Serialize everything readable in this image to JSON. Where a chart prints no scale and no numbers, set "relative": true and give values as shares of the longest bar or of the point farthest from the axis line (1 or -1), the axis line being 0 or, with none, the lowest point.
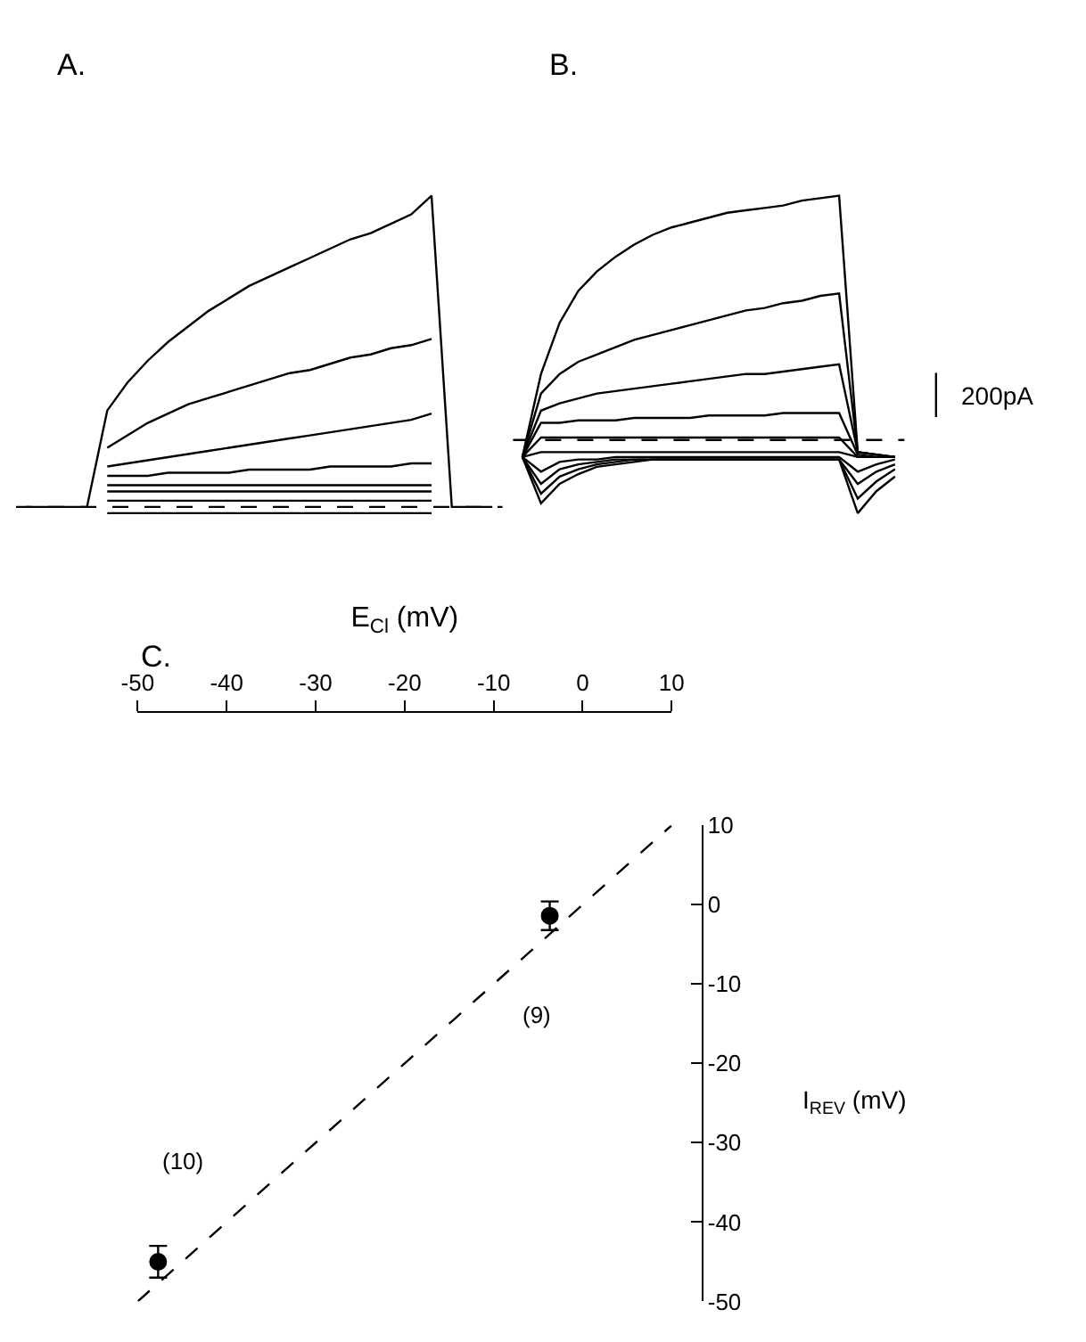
{
  "chart_data": [
    {
      "type": "line",
      "title": "A.",
      "relative": true,
      "marker": "none",
      "line_style": "solid",
      "categories": [
        null,
        null,
        null,
        null,
        null,
        null,
        null,
        null,
        null,
        null,
        null,
        null,
        null,
        null,
        null,
        null,
        null,
        null,
        null,
        null,
        null,
        null,
        null,
        null
      ],
      "ref_lines": [
        {
          "axis": "y",
          "value": 0,
          "line_style": "dashed",
          "color": "#000000"
        }
      ],
      "series": [
        {
          "color": "#000000",
          "values": [
            0,
            0,
            0,
            0,
            0.31,
            0.4,
            0.47,
            0.53,
            0.58,
            0.63,
            0.67,
            0.71,
            0.74,
            0.77,
            0.8,
            0.83,
            0.86,
            0.88,
            0.91,
            0.94,
            1.0,
            0,
            0,
            0
          ]
        },
        {
          "color": "#000000",
          "values": [
            null,
            null,
            null,
            null,
            0.19,
            0.23,
            0.27,
            0.3,
            0.33,
            0.35,
            0.37,
            0.39,
            0.41,
            0.43,
            0.44,
            0.46,
            0.48,
            0.49,
            0.51,
            0.52,
            0.54,
            null,
            null,
            null
          ]
        },
        {
          "color": "#000000",
          "values": [
            null,
            null,
            null,
            null,
            0.13,
            0.14,
            0.15,
            0.16,
            0.17,
            0.18,
            0.19,
            0.2,
            0.21,
            0.22,
            0.23,
            0.24,
            0.25,
            0.26,
            0.27,
            0.28,
            0.3,
            null,
            null,
            null
          ]
        },
        {
          "color": "#000000",
          "values": [
            null,
            null,
            null,
            null,
            0.1,
            0.1,
            0.1,
            0.11,
            0.11,
            0.11,
            0.11,
            0.12,
            0.12,
            0.12,
            0.12,
            0.13,
            0.13,
            0.13,
            0.13,
            0.14,
            0.14,
            null,
            null,
            null
          ]
        },
        {
          "color": "#000000",
          "values": [
            null,
            null,
            null,
            null,
            0.07,
            0.07,
            0.07,
            0.07,
            0.07,
            0.07,
            0.07,
            0.07,
            0.07,
            0.07,
            0.07,
            0.07,
            0.07,
            0.07,
            0.07,
            0.07,
            0.07,
            null,
            null,
            null
          ]
        },
        {
          "color": "#000000",
          "values": [
            null,
            null,
            null,
            null,
            0.05,
            0.05,
            0.05,
            0.05,
            0.05,
            0.05,
            0.05,
            0.05,
            0.05,
            0.05,
            0.05,
            0.05,
            0.05,
            0.05,
            0.05,
            0.05,
            0.05,
            null,
            null,
            null
          ]
        },
        {
          "color": "#000000",
          "values": [
            null,
            null,
            null,
            null,
            0.02,
            0.02,
            0.02,
            0.02,
            0.02,
            0.02,
            0.02,
            0.02,
            0.02,
            0.02,
            0.02,
            0.02,
            0.02,
            0.02,
            0.02,
            0.02,
            0.02,
            null,
            null,
            null
          ]
        },
        {
          "color": "#000000",
          "values": [
            null,
            null,
            null,
            null,
            -0.02,
            -0.02,
            -0.02,
            -0.02,
            -0.02,
            -0.02,
            -0.02,
            -0.02,
            -0.02,
            -0.02,
            -0.02,
            -0.02,
            -0.02,
            -0.02,
            -0.02,
            -0.02,
            -0.02,
            null,
            null,
            null
          ]
        }
      ]
    },
    {
      "type": "line",
      "title": "B.",
      "relative": true,
      "marker": "none",
      "line_style": "solid",
      "annotations": [
        "200pA"
      ],
      "categories": [
        null,
        null,
        null,
        null,
        null,
        null,
        null,
        null,
        null,
        null,
        null,
        null,
        null,
        null,
        null,
        null,
        null,
        null,
        null,
        null,
        null
      ],
      "ref_lines": [
        {
          "axis": "y",
          "value": 0,
          "line_style": "dashed",
          "color": "#000000"
        }
      ],
      "series": [
        {
          "color": "#000000",
          "values": [
            -0.07,
            0.27,
            0.48,
            0.61,
            0.69,
            0.75,
            0.8,
            0.84,
            0.87,
            0.89,
            0.91,
            0.93,
            0.94,
            0.95,
            0.96,
            0.98,
            0.99,
            1.0,
            -0.05,
            -0.06,
            -0.07
          ]
        },
        {
          "color": "#000000",
          "values": [
            -0.07,
            0.19,
            0.27,
            0.32,
            0.35,
            0.38,
            0.41,
            0.43,
            0.45,
            0.47,
            0.49,
            0.51,
            0.53,
            0.54,
            0.56,
            0.57,
            0.59,
            0.6,
            -0.05,
            -0.06,
            -0.07
          ]
        },
        {
          "color": "#000000",
          "values": [
            -0.07,
            0.12,
            0.15,
            0.17,
            0.19,
            0.2,
            0.21,
            0.22,
            0.23,
            0.24,
            0.25,
            0.26,
            0.27,
            0.27,
            0.28,
            0.29,
            0.3,
            0.31,
            -0.05,
            -0.06,
            -0.07
          ]
        },
        {
          "color": "#000000",
          "values": [
            -0.07,
            0.07,
            0.07,
            0.08,
            0.08,
            0.08,
            0.09,
            0.09,
            0.09,
            0.09,
            0.1,
            0.1,
            0.1,
            0.1,
            0.11,
            0.11,
            0.11,
            0.11,
            -0.06,
            -0.07,
            -0.07
          ]
        },
        {
          "color": "#000000",
          "values": [
            -0.07,
            0.01,
            0.01,
            0.01,
            0.01,
            0.01,
            0.01,
            0.01,
            0.01,
            0.01,
            0.01,
            0.01,
            0.01,
            0.01,
            0.01,
            0.01,
            0.01,
            0.01,
            -0.07,
            -0.07,
            -0.07
          ]
        },
        {
          "color": "#000000",
          "values": [
            -0.07,
            -0.05,
            -0.05,
            -0.05,
            -0.05,
            -0.05,
            -0.05,
            -0.05,
            -0.05,
            -0.05,
            -0.05,
            -0.05,
            -0.05,
            -0.05,
            -0.05,
            -0.05,
            -0.05,
            -0.05,
            -0.07,
            -0.07,
            -0.07
          ]
        },
        {
          "color": "#000000",
          "values": [
            -0.07,
            -0.13,
            -0.09,
            -0.08,
            -0.08,
            -0.07,
            -0.07,
            -0.07,
            -0.07,
            -0.07,
            -0.07,
            -0.07,
            -0.07,
            -0.07,
            -0.07,
            -0.07,
            -0.07,
            -0.07,
            -0.13,
            -0.1,
            -0.08
          ]
        },
        {
          "color": "#000000",
          "values": [
            -0.07,
            -0.18,
            -0.12,
            -0.1,
            -0.09,
            -0.08,
            -0.08,
            -0.08,
            -0.08,
            -0.08,
            -0.08,
            -0.08,
            -0.08,
            -0.08,
            -0.08,
            -0.08,
            -0.08,
            -0.08,
            -0.18,
            -0.13,
            -0.1
          ]
        },
        {
          "color": "#000000",
          "values": [
            -0.07,
            -0.22,
            -0.15,
            -0.12,
            -0.1,
            -0.09,
            -0.08,
            -0.08,
            -0.08,
            -0.08,
            -0.08,
            -0.08,
            -0.08,
            -0.08,
            -0.08,
            -0.08,
            -0.08,
            -0.08,
            -0.24,
            -0.17,
            -0.12
          ]
        },
        {
          "color": "#000000",
          "values": [
            -0.07,
            -0.26,
            -0.18,
            -0.14,
            -0.11,
            -0.1,
            -0.09,
            -0.08,
            -0.08,
            -0.08,
            -0.08,
            -0.08,
            -0.08,
            -0.08,
            -0.08,
            -0.08,
            -0.08,
            -0.08,
            -0.3,
            -0.21,
            -0.15
          ]
        }
      ]
    },
    {
      "type": "scatter",
      "title": "C.",
      "xlabel": "E$_{Cl}$ (mV)",
      "ylabel": "I$_{REV}$ (mV)",
      "marker": "circle",
      "xlim": [
        -50,
        10
      ],
      "xticks": [
        -50,
        -40,
        -30,
        -20,
        -10,
        0,
        10
      ],
      "ylim": [
        -50,
        10
      ],
      "yticks": [
        -50,
        -40,
        -30,
        -20,
        -10,
        0,
        10
      ],
      "annotations": [
        "(10)",
        "(9)"
      ],
      "series": [
        {
          "type": "scatter",
          "color": "#000000",
          "x": [
            -47.7,
            -3.7
          ],
          "values": [
            -45,
            -1.4
          ],
          "errors": [
            2,
            1.8
          ]
        },
        {
          "type": "line",
          "color": "#000000",
          "line_style": "dashed",
          "marker": "none",
          "x": [
            -50,
            10
          ],
          "values": [
            -50,
            10
          ]
        }
      ]
    }
  ]
}
